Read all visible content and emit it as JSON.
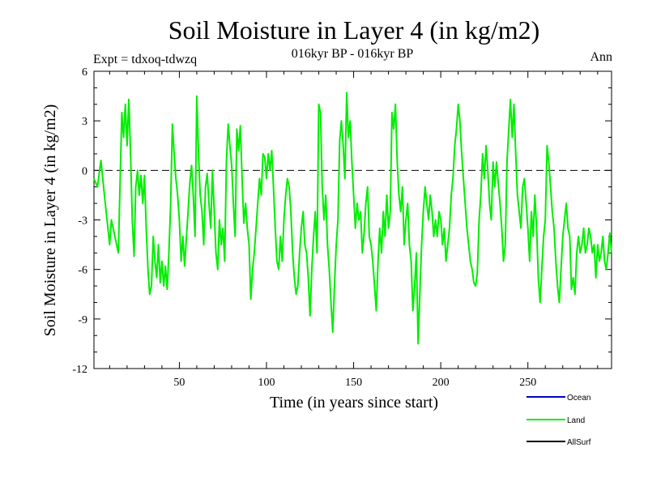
{
  "chart_data": {
    "type": "line",
    "title": "Soil Moisture in Layer 4 (in kg/m2)",
    "subtitle": "016kyr BP - 016kyr BP",
    "experiment_label": "Expt = tdxoq-tdwzq",
    "period_label": "Ann",
    "xlabel": "Time (in years since start)",
    "ylabel": "Soil Moisture in Layer 4 (in kg/m2)",
    "xlim": [
      1,
      298
    ],
    "ylim": [
      -12,
      6
    ],
    "x_ticks": [
      50,
      100,
      150,
      200,
      250
    ],
    "y_ticks": [
      -12,
      -9,
      -6,
      -3,
      0,
      3,
      6
    ],
    "zero_line": true,
    "grid": false,
    "legend_position": "bottom-right",
    "legend": [
      {
        "name": "Ocean",
        "color": "#0000cc"
      },
      {
        "name": "Land",
        "color": "#00ee00"
      },
      {
        "name": "AllSurf",
        "color": "#000000"
      }
    ],
    "series": [
      {
        "name": "Land",
        "color": "#00ee00",
        "keypoints": [
          [
            1,
            -0.5
          ],
          [
            3,
            -1.0
          ],
          [
            5,
            0.6
          ],
          [
            7,
            -1.5
          ],
          [
            9,
            -3.5
          ],
          [
            10,
            -4.5
          ],
          [
            11,
            -3.0
          ],
          [
            13,
            -4.0
          ],
          [
            15,
            -5.0
          ],
          [
            17,
            3.5
          ],
          [
            18,
            2.0
          ],
          [
            19,
            4.0
          ],
          [
            20,
            1.5
          ],
          [
            21,
            4.3
          ],
          [
            22,
            1.0
          ],
          [
            23,
            -3.0
          ],
          [
            24,
            -5.2
          ],
          [
            25,
            -1.0
          ],
          [
            26,
            0.0
          ],
          [
            27,
            -1.5
          ],
          [
            28,
            -0.3
          ],
          [
            29,
            -2.0
          ],
          [
            30,
            -0.3
          ],
          [
            31,
            -3.5
          ],
          [
            32,
            -6.0
          ],
          [
            33,
            -7.5
          ],
          [
            34,
            -7.0
          ],
          [
            35,
            -4.0
          ],
          [
            36,
            -5.5
          ],
          [
            37,
            -6.5
          ],
          [
            38,
            -4.5
          ],
          [
            39,
            -6.8
          ],
          [
            40,
            -5.5
          ],
          [
            41,
            -7.0
          ],
          [
            42,
            -5.8
          ],
          [
            43,
            -7.2
          ],
          [
            44,
            -5.0
          ],
          [
            45,
            -2.0
          ],
          [
            46,
            2.8
          ],
          [
            47,
            1.0
          ],
          [
            48,
            -0.5
          ],
          [
            49,
            -1.5
          ],
          [
            50,
            -3.0
          ],
          [
            51,
            -5.5
          ],
          [
            52,
            -4.0
          ],
          [
            53,
            -5.8
          ],
          [
            54,
            -4.2
          ],
          [
            55,
            -2.5
          ],
          [
            56,
            -0.8
          ],
          [
            57,
            0.3
          ],
          [
            58,
            -1.5
          ],
          [
            59,
            -4.0
          ],
          [
            60,
            4.5
          ],
          [
            61,
            1.0
          ],
          [
            62,
            -1.5
          ],
          [
            63,
            -2.5
          ],
          [
            64,
            -4.5
          ],
          [
            65,
            -1.0
          ],
          [
            66,
            -0.2
          ],
          [
            67,
            -2.0
          ],
          [
            68,
            -3.5
          ],
          [
            69,
            0.0
          ],
          [
            70,
            -2.5
          ],
          [
            71,
            -5.0
          ],
          [
            72,
            -6.0
          ],
          [
            73,
            -3.0
          ],
          [
            74,
            -4.5
          ],
          [
            75,
            -3.5
          ],
          [
            76,
            -5.5
          ],
          [
            77,
            0.5
          ],
          [
            78,
            2.8
          ],
          [
            79,
            1.5
          ],
          [
            80,
            0.3
          ],
          [
            81,
            -2.0
          ],
          [
            82,
            -4.0
          ],
          [
            83,
            2.5
          ],
          [
            84,
            1.2
          ],
          [
            85,
            2.7
          ],
          [
            86,
            -0.5
          ],
          [
            87,
            -3.2
          ],
          [
            88,
            -2.0
          ],
          [
            89,
            -3.5
          ],
          [
            90,
            -4.5
          ],
          [
            91,
            -7.8
          ],
          [
            92,
            -6.0
          ],
          [
            93,
            -5.0
          ],
          [
            94,
            -3.5
          ],
          [
            95,
            -2.0
          ],
          [
            96,
            -0.5
          ],
          [
            97,
            -1.5
          ],
          [
            98,
            1.0
          ],
          [
            99,
            0.8
          ],
          [
            100,
            -0.5
          ],
          [
            101,
            1.0
          ],
          [
            102,
            0.0
          ],
          [
            103,
            1.2
          ],
          [
            104,
            -1.0
          ],
          [
            105,
            -3.5
          ],
          [
            106,
            -5.5
          ],
          [
            107,
            -6.0
          ],
          [
            108,
            -4.0
          ],
          [
            109,
            -5.5
          ],
          [
            110,
            -3.0
          ],
          [
            111,
            -1.5
          ],
          [
            112,
            -0.5
          ],
          [
            113,
            -1.0
          ],
          [
            114,
            -2.5
          ],
          [
            115,
            -5.0
          ],
          [
            116,
            -6.5
          ],
          [
            117,
            -7.5
          ],
          [
            118,
            -7.0
          ],
          [
            119,
            -5.0
          ],
          [
            120,
            -3.5
          ],
          [
            121,
            -2.5
          ],
          [
            122,
            -4.5
          ],
          [
            123,
            -5.0
          ],
          [
            124,
            -6.5
          ],
          [
            125,
            -8.8
          ],
          [
            126,
            -6.0
          ],
          [
            127,
            -4.0
          ],
          [
            128,
            -2.5
          ],
          [
            129,
            -5.0
          ],
          [
            130,
            4.0
          ],
          [
            131,
            3.5
          ],
          [
            132,
            -1.0
          ],
          [
            133,
            -3.0
          ],
          [
            134,
            -1.5
          ],
          [
            135,
            -4.5
          ],
          [
            136,
            -6.0
          ],
          [
            137,
            -8.0
          ],
          [
            138,
            -9.8
          ],
          [
            139,
            -7.0
          ],
          [
            140,
            -4.5
          ],
          [
            141,
            -3.0
          ],
          [
            142,
            1.8
          ],
          [
            143,
            3.0
          ],
          [
            144,
            1.5
          ],
          [
            145,
            -0.5
          ],
          [
            146,
            4.7
          ],
          [
            147,
            2.0
          ],
          [
            148,
            3.0
          ],
          [
            149,
            0.5
          ],
          [
            150,
            -1.5
          ],
          [
            151,
            -3.5
          ],
          [
            152,
            -2.0
          ],
          [
            153,
            -3.0
          ],
          [
            154,
            -2.5
          ],
          [
            155,
            -5.0
          ],
          [
            156,
            -3.8
          ],
          [
            157,
            -2.0
          ],
          [
            158,
            -1.0
          ],
          [
            159,
            -4.0
          ],
          [
            160,
            -4.5
          ],
          [
            161,
            -5.5
          ],
          [
            162,
            -7.0
          ],
          [
            163,
            -8.5
          ],
          [
            164,
            -5.5
          ],
          [
            165,
            -3.5
          ],
          [
            166,
            -5.0
          ],
          [
            167,
            -2.5
          ],
          [
            168,
            -4.0
          ],
          [
            169,
            -1.5
          ],
          [
            170,
            -3.5
          ],
          [
            171,
            -2.5
          ],
          [
            172,
            3.5
          ],
          [
            173,
            2.5
          ],
          [
            174,
            4.0
          ],
          [
            175,
            0.5
          ],
          [
            176,
            -1.5
          ],
          [
            177,
            -2.5
          ],
          [
            178,
            -1.0
          ],
          [
            179,
            -4.5
          ],
          [
            180,
            -3.0
          ],
          [
            181,
            -2.0
          ],
          [
            182,
            -4.5
          ],
          [
            183,
            -5.5
          ],
          [
            184,
            -8.5
          ],
          [
            185,
            -7.0
          ],
          [
            186,
            -5.0
          ],
          [
            187,
            -10.5
          ],
          [
            188,
            -7.5
          ],
          [
            189,
            -4.5
          ],
          [
            190,
            -2.5
          ],
          [
            191,
            -1.0
          ],
          [
            192,
            -2.0
          ],
          [
            193,
            -3.0
          ],
          [
            194,
            -1.5
          ],
          [
            195,
            -2.5
          ],
          [
            196,
            -4.0
          ],
          [
            197,
            -3.0
          ],
          [
            198,
            -4.0
          ],
          [
            199,
            -2.5
          ],
          [
            200,
            -3.0
          ],
          [
            201,
            -4.5
          ],
          [
            202,
            -3.5
          ],
          [
            203,
            -5.5
          ],
          [
            204,
            -4.5
          ],
          [
            205,
            -3.5
          ],
          [
            206,
            -1.5
          ],
          [
            207,
            -0.5
          ],
          [
            208,
            1.5
          ],
          [
            209,
            2.5
          ],
          [
            210,
            4.0
          ],
          [
            211,
            3.0
          ],
          [
            212,
            1.0
          ],
          [
            213,
            -0.5
          ],
          [
            214,
            -2.0
          ],
          [
            215,
            -3.5
          ],
          [
            216,
            -4.5
          ],
          [
            217,
            -5.5
          ],
          [
            218,
            -6.0
          ],
          [
            219,
            -6.8
          ],
          [
            220,
            -7.0
          ],
          [
            221,
            -6.2
          ],
          [
            222,
            -3.0
          ],
          [
            223,
            -1.5
          ],
          [
            224,
            1.0
          ],
          [
            225,
            -0.5
          ],
          [
            226,
            1.5
          ],
          [
            227,
            0.0
          ],
          [
            228,
            -2.0
          ],
          [
            229,
            -3.0
          ],
          [
            230,
            0.5
          ],
          [
            231,
            -1.0
          ],
          [
            232,
            0.5
          ],
          [
            233,
            -0.8
          ],
          [
            234,
            -2.0
          ],
          [
            235,
            -3.5
          ],
          [
            236,
            -5.5
          ],
          [
            237,
            -4.5
          ],
          [
            238,
            0.5
          ],
          [
            239,
            2.5
          ],
          [
            240,
            4.3
          ],
          [
            241,
            2.0
          ],
          [
            242,
            4.0
          ],
          [
            243,
            1.0
          ],
          [
            244,
            -1.5
          ],
          [
            245,
            -2.5
          ],
          [
            246,
            -3.5
          ],
          [
            247,
            -1.0
          ],
          [
            248,
            -0.5
          ],
          [
            249,
            -2.0
          ],
          [
            250,
            -3.5
          ],
          [
            251,
            -5.5
          ],
          [
            252,
            -2.5
          ],
          [
            253,
            -4.0
          ],
          [
            254,
            -1.5
          ],
          [
            255,
            -3.5
          ],
          [
            256,
            -6.5
          ],
          [
            257,
            -8.0
          ],
          [
            258,
            -6.0
          ],
          [
            259,
            -4.0
          ],
          [
            260,
            -3.0
          ],
          [
            261,
            1.5
          ],
          [
            262,
            0.5
          ],
          [
            263,
            -1.0
          ],
          [
            264,
            -2.5
          ],
          [
            265,
            -3.5
          ],
          [
            266,
            -5.5
          ],
          [
            267,
            -7.0
          ],
          [
            268,
            -8.0
          ],
          [
            269,
            -6.0
          ],
          [
            270,
            -4.0
          ],
          [
            271,
            -3.0
          ],
          [
            272,
            -2.0
          ],
          [
            273,
            -3.5
          ],
          [
            274,
            -4.0
          ],
          [
            275,
            -7.2
          ],
          [
            276,
            -6.5
          ],
          [
            277,
            -7.5
          ],
          [
            278,
            -5.0
          ],
          [
            279,
            -4.0
          ],
          [
            280,
            -5.0
          ],
          [
            281,
            -4.5
          ],
          [
            282,
            -3.5
          ],
          [
            283,
            -5.0
          ],
          [
            284,
            -4.5
          ],
          [
            285,
            -3.5
          ],
          [
            286,
            -4.0
          ],
          [
            287,
            -5.0
          ],
          [
            288,
            -4.5
          ],
          [
            289,
            -6.5
          ],
          [
            290,
            -4.5
          ],
          [
            291,
            -5.5
          ],
          [
            292,
            -5.0
          ],
          [
            293,
            -4.0
          ],
          [
            294,
            -5.5
          ],
          [
            295,
            -6.0
          ],
          [
            296,
            -5.0
          ],
          [
            297,
            -3.8
          ],
          [
            298,
            -5.0
          ]
        ]
      }
    ]
  }
}
